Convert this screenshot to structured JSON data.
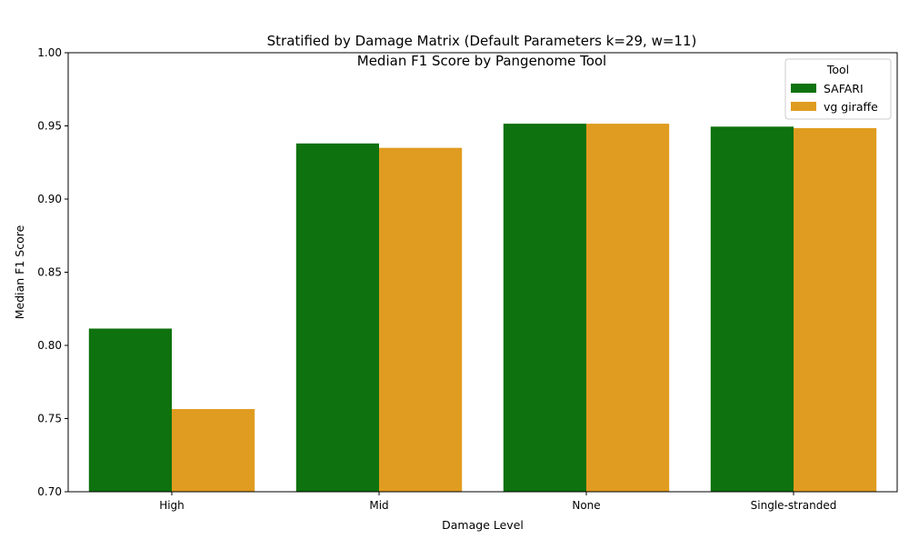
{
  "chart_data": {
    "type": "bar",
    "title": "Median F1 Score by Pangenome Tool",
    "subtitle": "Stratified by Damage Matrix (Default Parameters k=29, w=11)",
    "xlabel": "Damage Level",
    "ylabel": "Median F1 Score",
    "categories": [
      "High",
      "Mid",
      "None",
      "Single-stranded"
    ],
    "series": [
      {
        "name": "SAFARI",
        "color": "#0e720e",
        "values": [
          0.8115,
          0.938,
          0.9515,
          0.9495
        ]
      },
      {
        "name": "vg giraffe",
        "color": "#e09c20",
        "values": [
          0.7565,
          0.935,
          0.9515,
          0.9485
        ]
      }
    ],
    "ylim": [
      0.7,
      1.0
    ],
    "yticks": [
      0.7,
      0.75,
      0.8,
      0.85,
      0.9,
      0.95,
      1.0
    ],
    "ytick_labels": [
      "0.70",
      "0.75",
      "0.80",
      "0.85",
      "0.90",
      "0.95",
      "1.00"
    ],
    "grid": false,
    "legend": {
      "title": "Tool",
      "placement": "top-right"
    }
  }
}
